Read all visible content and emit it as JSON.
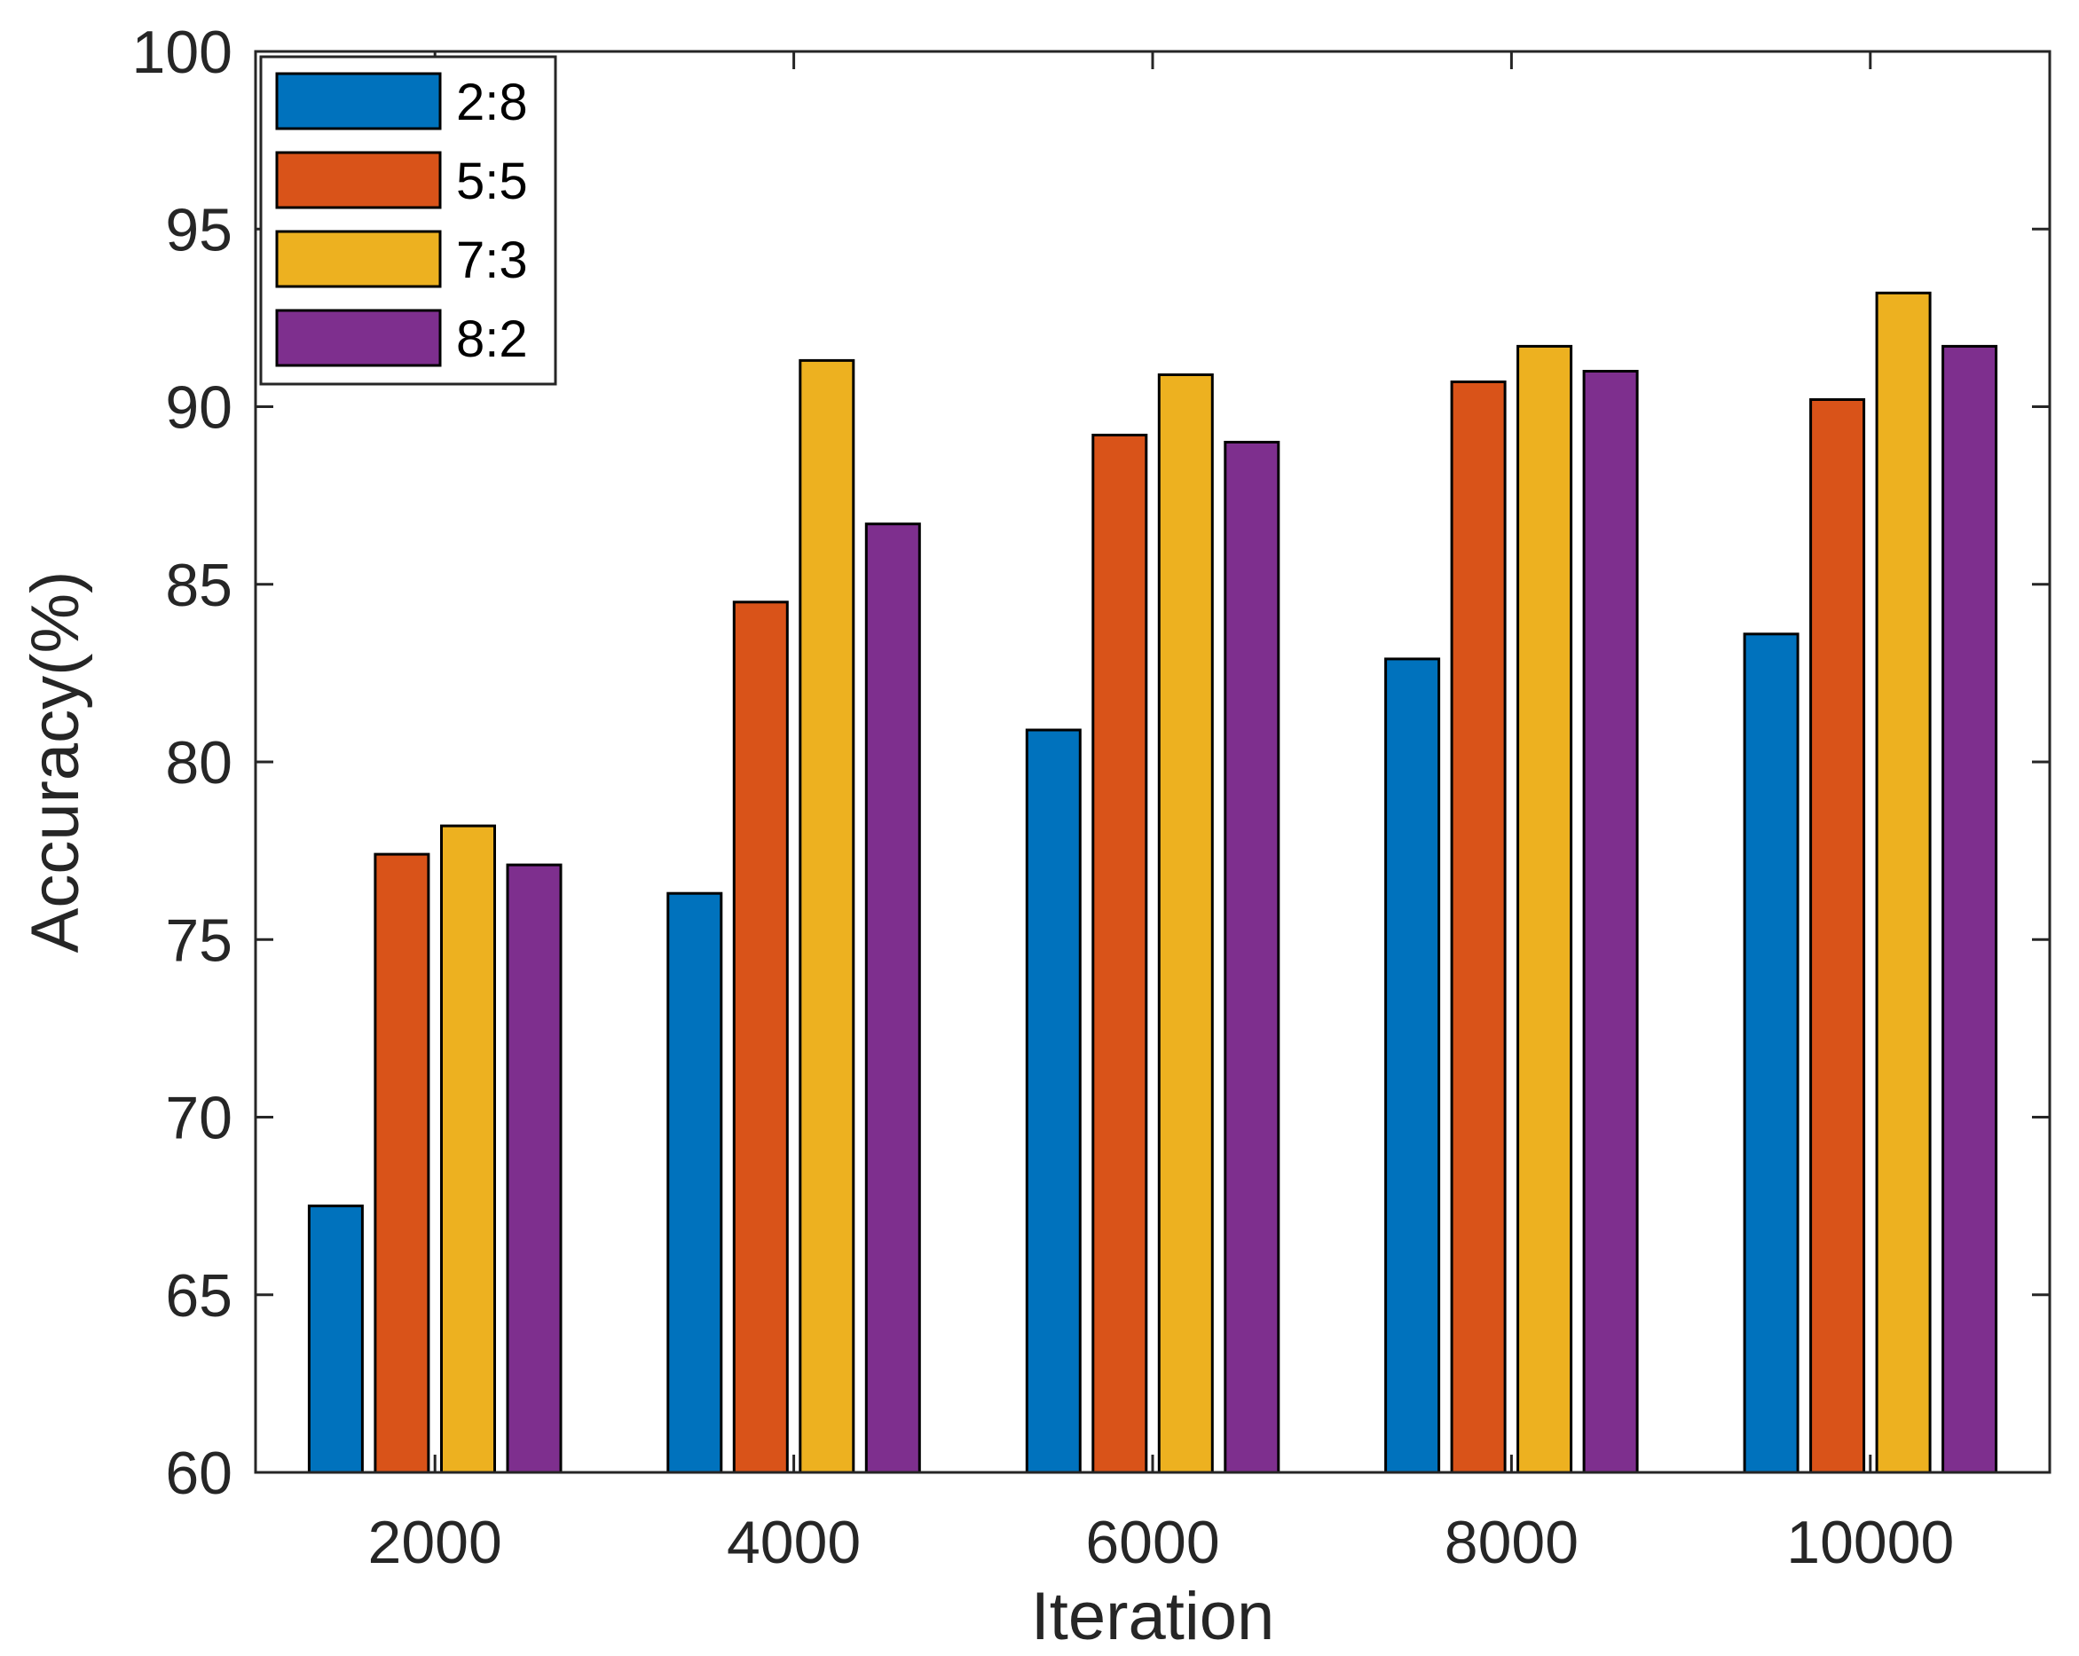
{
  "chart_data": {
    "type": "bar",
    "title": "",
    "xlabel": "Iteration",
    "ylabel": "Accuracy(%)",
    "categories": [
      "2000",
      "4000",
      "6000",
      "8000",
      "10000"
    ],
    "ylim": [
      60,
      100
    ],
    "yticks": [
      60,
      65,
      70,
      75,
      80,
      85,
      90,
      95,
      100
    ],
    "grid": false,
    "legend_position": "top-left",
    "series": [
      {
        "name": "2:8",
        "color": "#0072BD",
        "values": [
          67.5,
          76.3,
          80.9,
          82.9,
          83.6
        ]
      },
      {
        "name": "5:5",
        "color": "#D95319",
        "values": [
          77.4,
          84.5,
          89.2,
          90.7,
          90.2
        ]
      },
      {
        "name": "7:3",
        "color": "#EDB120",
        "values": [
          78.2,
          91.3,
          90.9,
          91.7,
          93.2
        ]
      },
      {
        "name": "8:2",
        "color": "#7E2F8E",
        "values": [
          77.1,
          86.7,
          89.0,
          91.0,
          91.7
        ]
      }
    ]
  }
}
